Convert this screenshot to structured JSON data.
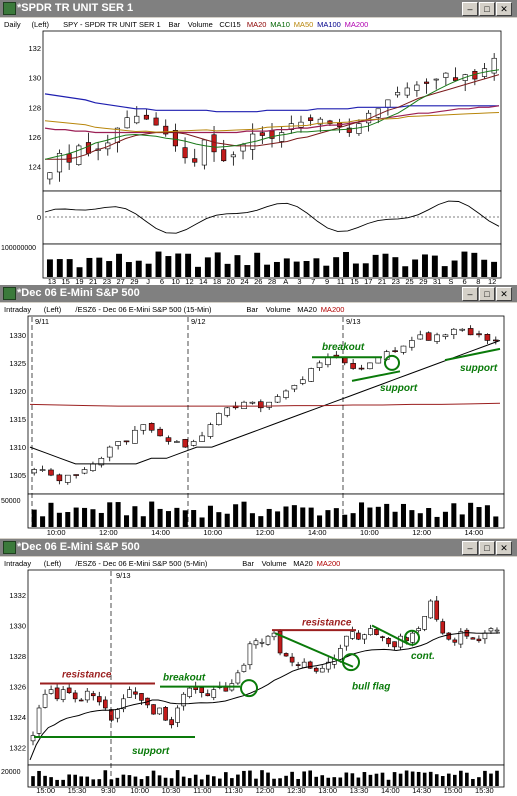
{
  "windows": [
    {
      "title": "*SPDR TR UNIT SER 1",
      "header": [
        {
          "text": "Daily",
          "color": "#000000"
        },
        {
          "text": "(Left)",
          "color": "#000000"
        },
        {
          "text": "SPY - SPDR TR UNIT SER 1",
          "color": "#000000"
        },
        {
          "text": "Bar",
          "color": "#000000"
        },
        {
          "text": "Volume",
          "color": "#000000"
        },
        {
          "text": "CCI15",
          "color": "#000000"
        },
        {
          "text": "MA20",
          "color": "#8b0000"
        },
        {
          "text": "MA10",
          "color": "#006400"
        },
        {
          "text": "MA50",
          "color": "#b8860b"
        },
        {
          "text": "MA100",
          "color": "#00008b"
        },
        {
          "text": "MA200",
          "color": "#b000b0"
        }
      ],
      "price_ticks": [
        "132",
        "130",
        "128",
        "126",
        "124"
      ],
      "cci_tick": "0",
      "volume_tick": "100000000",
      "x_labels": [
        "13",
        "15",
        "19",
        "21",
        "23",
        "27",
        "29",
        "J",
        "6",
        "10",
        "12",
        "14",
        "18",
        "20",
        "24",
        "26",
        "28",
        "A",
        "3",
        "7",
        "9",
        "11",
        "15",
        "17",
        "21",
        "23",
        "25",
        "29",
        "31",
        "S",
        "6",
        "8",
        "12"
      ]
    },
    {
      "title": "*Dec 06  E-Mini S&P 500",
      "header": [
        {
          "text": "Intraday",
          "color": "#000000"
        },
        {
          "text": "(Left)",
          "color": "#000000"
        },
        {
          "text": "/ESZ6 - Dec 06  E-Mini S&P 500  (15-Min)",
          "color": "#000000"
        },
        {
          "text": "Bar",
          "color": "#000000"
        },
        {
          "text": "Volume",
          "color": "#000000"
        },
        {
          "text": "MA20",
          "color": "#000000"
        },
        {
          "text": "MA200",
          "color": "#b00000"
        }
      ],
      "price_ticks": [
        "1330",
        "1325",
        "1320",
        "1315",
        "1310",
        "1305"
      ],
      "volume_tick": "50000",
      "date_marks": [
        "9/11",
        "9/12",
        "9/13"
      ],
      "x_labels": [
        "10:00",
        "12:00",
        "14:00",
        "10:00",
        "12:00",
        "14:00",
        "10:00",
        "12:00",
        "14:00"
      ],
      "annotations": {
        "breakout": "breakout",
        "support1": "support",
        "support2": "support"
      }
    },
    {
      "title": "*Dec 06  E-Mini S&P 500",
      "header": [
        {
          "text": "Intraday",
          "color": "#000000"
        },
        {
          "text": "(Left)",
          "color": "#000000"
        },
        {
          "text": "/ESZ6 - Dec 06  E-Mini S&P 500  (5-Min)",
          "color": "#000000"
        },
        {
          "text": "Bar",
          "color": "#000000"
        },
        {
          "text": "Volume",
          "color": "#000000"
        },
        {
          "text": "MA20",
          "color": "#000000"
        },
        {
          "text": "MA200",
          "color": "#b00000"
        }
      ],
      "price_ticks": [
        "1332",
        "1330",
        "1328",
        "1326",
        "1324",
        "1322"
      ],
      "volume_tick": "20000",
      "date_marks": [
        "9/13"
      ],
      "x_labels": [
        "15:00",
        "15:30",
        "9:30",
        "10:00",
        "10:30",
        "11:00",
        "11:30",
        "12:00",
        "12:30",
        "13:00",
        "13:30",
        "14:00",
        "14:30",
        "15:00",
        "15:30"
      ],
      "annotations": {
        "resistance1": "resistance",
        "breakout": "breakout",
        "support": "support",
        "resistance2": "resistance",
        "bull_flag": "bull flag",
        "cont": "cont."
      }
    }
  ],
  "chart_data": [
    {
      "type": "bar",
      "title": "SPY - SPDR TR UNIT SER 1",
      "timeframe": "Daily",
      "ylim": [
        122.5,
        133
      ],
      "close": [
        123.6,
        124.9,
        124.3,
        125.4,
        124.9,
        125.2,
        125.6,
        126.6,
        127.3,
        127.4,
        127.2,
        126.8,
        126.2,
        125.4,
        124.6,
        124.3,
        125.8,
        125.0,
        124.4,
        124.8,
        125.5,
        126.2,
        126.1,
        125.9,
        126.3,
        126.9,
        127.0,
        127.1,
        127.2,
        126.9,
        126.7,
        126.3,
        126.9,
        127.6,
        127.9,
        128.5,
        129.0,
        129.3,
        129.5,
        129.6,
        129.9,
        130.3,
        129.8,
        130.2,
        129.9,
        130.6,
        131.3
      ],
      "ma20": [
        124.5,
        124.5,
        124.5,
        124.6,
        124.8,
        125.1,
        125.3,
        125.6,
        125.9,
        126.1,
        126.2,
        126.3,
        126.3,
        126.3,
        126.2,
        126.0,
        125.8,
        125.6,
        125.5,
        125.4,
        125.4,
        125.4,
        125.5,
        125.6,
        125.7,
        125.9,
        126.0,
        126.2,
        126.4,
        126.6,
        126.8,
        127.0,
        127.2,
        127.5,
        127.8,
        128.0,
        128.3,
        128.6,
        128.8,
        129.0,
        129.2,
        129.4,
        129.6,
        129.8,
        130.0,
        130.2
      ],
      "ma100": [
        128.9,
        128.8,
        128.7,
        128.6,
        128.5,
        128.3,
        128.2,
        128.1,
        128.0,
        127.9,
        127.9,
        127.8,
        127.8,
        127.8,
        127.8,
        127.8,
        127.8,
        127.7,
        127.7,
        127.7,
        127.7,
        127.7,
        127.8,
        127.8,
        127.8,
        127.8,
        127.8,
        127.9,
        127.9,
        127.9,
        127.9,
        128.0,
        128.0,
        128.0,
        128.0,
        128.0,
        128.1,
        128.1,
        128.1,
        128.1,
        128.1,
        128.1,
        128.1,
        128.1,
        128.1,
        128.1
      ],
      "ma200": [
        126.6,
        126.5,
        126.5,
        126.4,
        126.4,
        126.3,
        126.3,
        126.3,
        126.3,
        126.3,
        126.3,
        126.3,
        126.3,
        126.3,
        126.3,
        126.3,
        126.3,
        126.3,
        126.3,
        126.3,
        126.4,
        126.4,
        126.4,
        126.5,
        126.5,
        126.6,
        126.6,
        126.7,
        126.8,
        126.8,
        126.9,
        127.0,
        127.1,
        127.2,
        127.3,
        127.4,
        127.5,
        127.6,
        127.6,
        127.7,
        127.8,
        127.9,
        127.9,
        128.0,
        128.0,
        128.1
      ]
    },
    {
      "type": "bar",
      "title": "/ESZ6 - Dec 06  E-Mini S&P 500  (15-Min)",
      "ylim": [
        1302,
        1333
      ],
      "close": [
        1306,
        1306,
        1305,
        1304,
        1305,
        1305,
        1306,
        1307,
        1308,
        1310,
        1311,
        1311,
        1313,
        1314,
        1313,
        1312,
        1311,
        1311,
        1310,
        1311,
        1312,
        1314,
        1316,
        1317,
        1317,
        1318,
        1318,
        1317,
        1318,
        1319,
        1320,
        1321,
        1322,
        1324,
        1325,
        1326,
        1326,
        1325,
        1324,
        1324,
        1325,
        1326,
        1327,
        1327,
        1328,
        1329,
        1330,
        1329,
        1330,
        1330,
        1331,
        1331,
        1330,
        1330,
        1329,
        1329
      ],
      "ma20": [
        1310,
        1309,
        1308,
        1307,
        1307,
        1307,
        1307,
        1307,
        1308,
        1308,
        1309,
        1310,
        1310,
        1311,
        1312,
        1313,
        1314,
        1315,
        1316,
        1317,
        1318,
        1319,
        1320,
        1321,
        1322,
        1323,
        1324,
        1325,
        1326,
        1327,
        1328,
        1329
      ],
      "ma200": [
        1317.6,
        1317.5,
        1317.4,
        1317.3,
        1317.3,
        1317.3,
        1317.3,
        1317.3,
        1317.3,
        1317.4,
        1317.4,
        1317.5,
        1317.5,
        1317.6,
        1317.6,
        1317.7,
        1317.8
      ]
    },
    {
      "type": "bar",
      "title": "/ESZ6 - Dec 06  E-Mini S&P 500  (5-Min)",
      "ylim": [
        1321,
        1333.5
      ],
      "close": [
        1322.8,
        1324.6,
        1325.5,
        1325.8,
        1325.2,
        1325.8,
        1325.6,
        1325.2,
        1325.1,
        1325.7,
        1325.4,
        1325.0,
        1324.6,
        1323.8,
        1324.5,
        1325.2,
        1325.8,
        1325.5,
        1325.1,
        1324.8,
        1324.2,
        1324.6,
        1323.8,
        1323.5,
        1324.6,
        1325.5,
        1325.9,
        1325.8,
        1325.6,
        1325.4,
        1325.8,
        1326.0,
        1325.7,
        1326.2,
        1326.9,
        1327.4,
        1328.8,
        1329.0,
        1328.9,
        1329.3,
        1329.5,
        1328.2,
        1328.0,
        1327.6,
        1327.4,
        1327.6,
        1327.2,
        1327.0,
        1327.2,
        1327.6,
        1327.8,
        1328.5,
        1329.3,
        1329.6,
        1329.1,
        1329.4,
        1329.8,
        1329.4,
        1329.2,
        1328.8,
        1328.6,
        1329.3,
        1329.0,
        1329.5,
        1329.8,
        1330.6,
        1331.6,
        1330.4,
        1329.5,
        1329.1,
        1328.9,
        1329.6,
        1329.3,
        1329.1,
        1329.0,
        1329.5,
        1329.8,
        1329.7
      ]
    }
  ]
}
